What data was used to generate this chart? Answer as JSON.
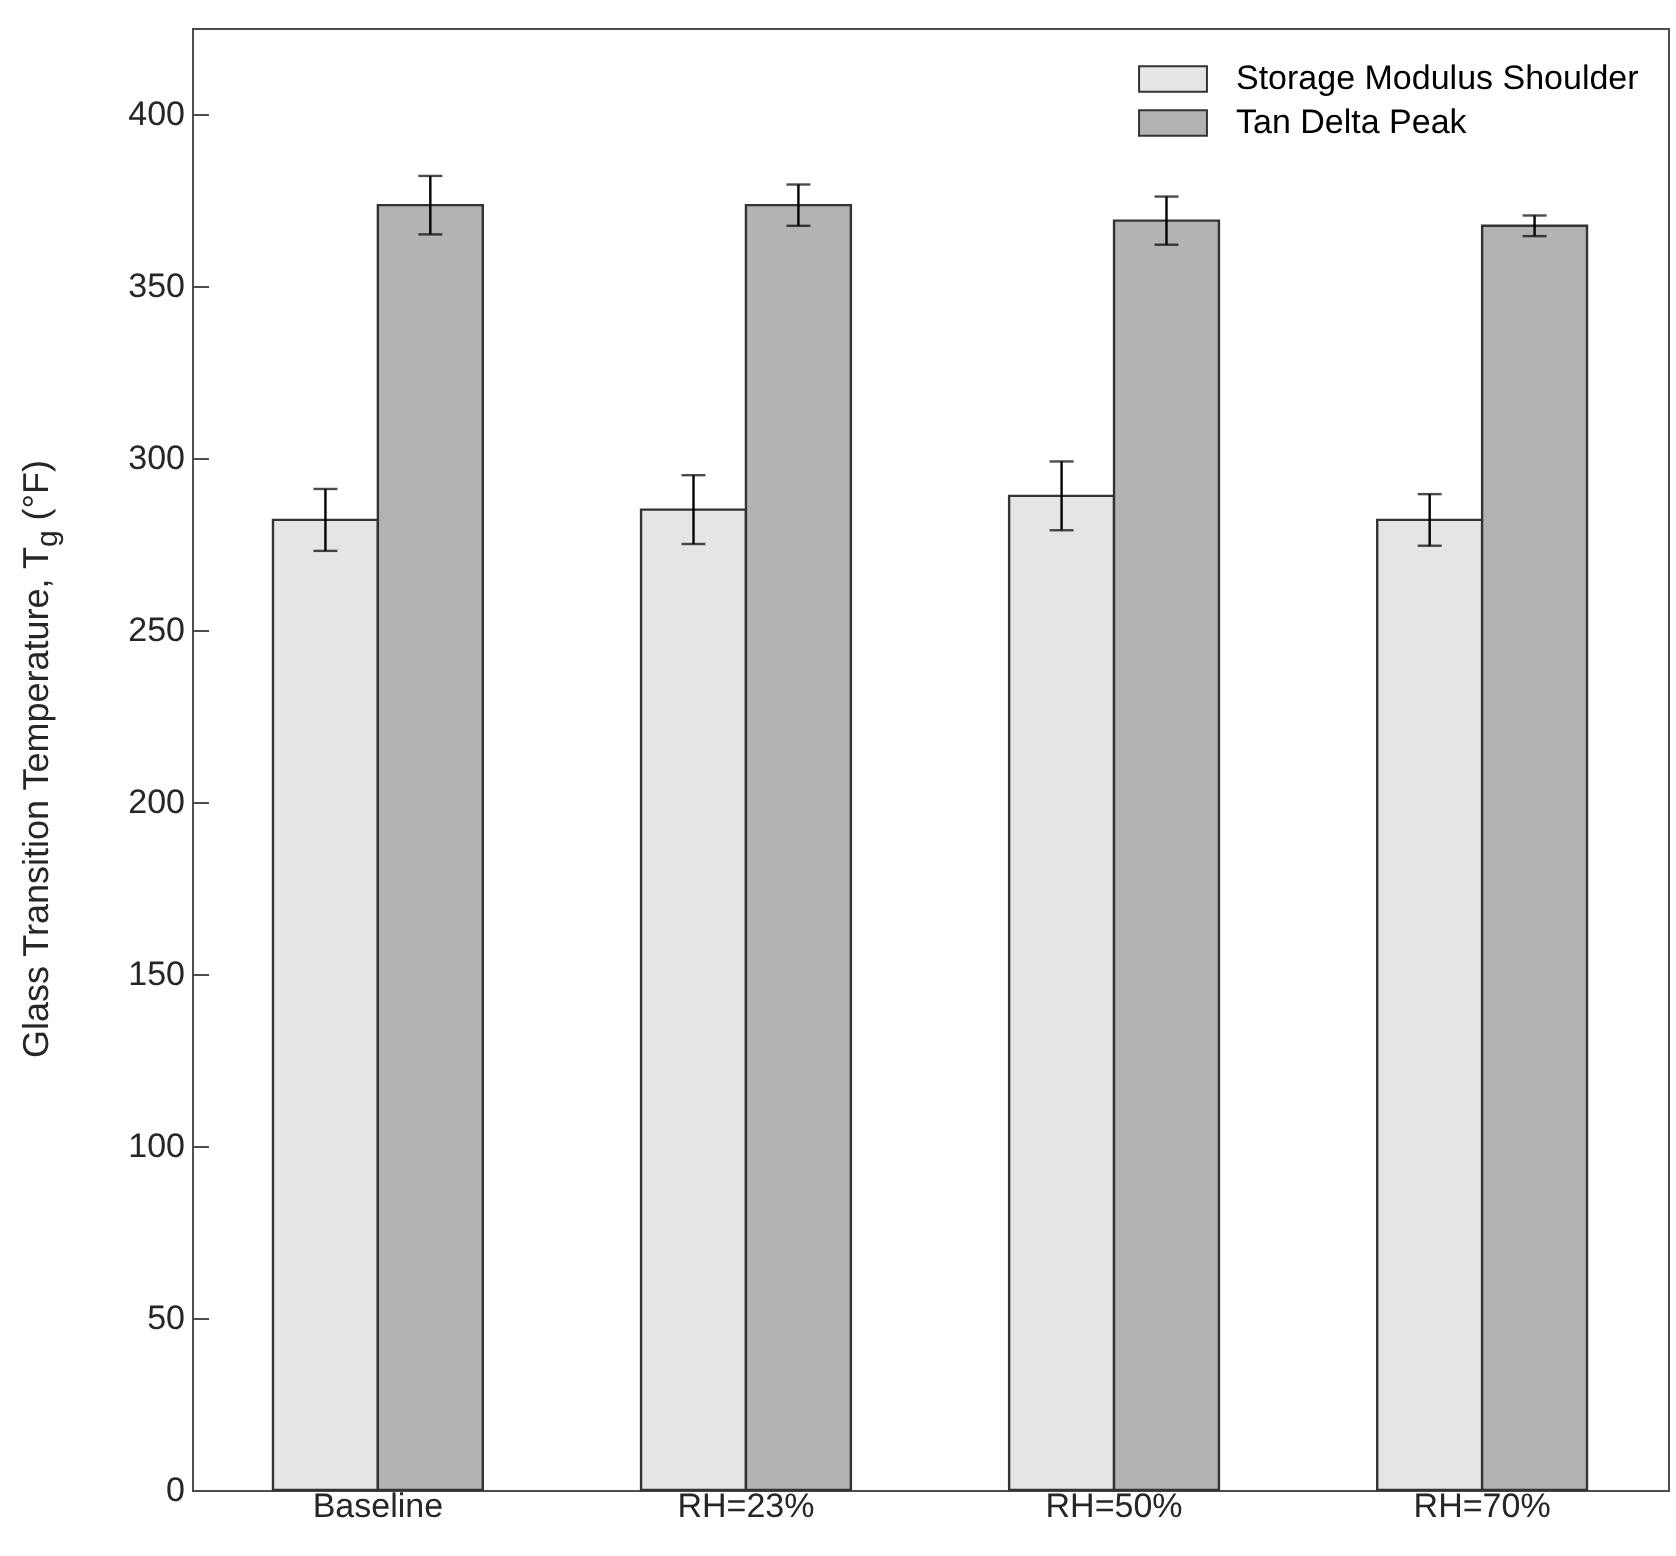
{
  "chart_data": {
    "type": "bar",
    "ylabel": "Glass Transition Temperature, T$_{g}$ (°F)",
    "categories": [
      "Baseline",
      "RH=23%",
      "RH=50%",
      "RH=70%"
    ],
    "series": [
      {
        "name": "Storage Modulus Shoulder",
        "color": "#e5e5e5",
        "values": [
          282,
          285,
          289,
          282
        ],
        "errors": [
          9,
          10,
          10,
          7.5
        ]
      },
      {
        "name": "Tan Delta Peak",
        "color": "#b3b3b3",
        "values": [
          373.5,
          373.5,
          369,
          367.5
        ],
        "errors": [
          8.5,
          6,
          7,
          3
        ]
      }
    ],
    "ylim": [
      0,
      425
    ],
    "yticks": [
      0,
      50,
      100,
      150,
      200,
      250,
      300,
      350,
      400
    ],
    "legend": "top right",
    "grid": false
  }
}
